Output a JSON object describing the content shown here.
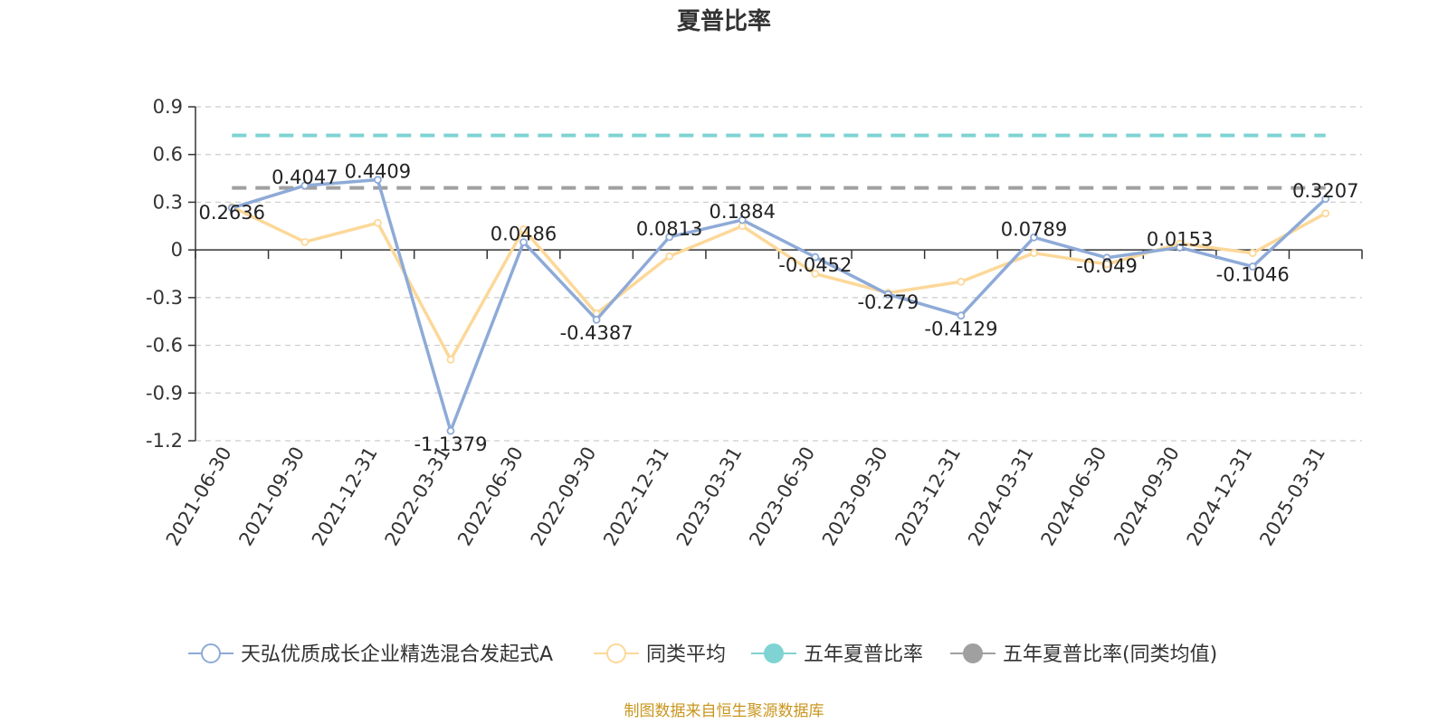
{
  "chart_data": {
    "type": "line",
    "title": "夏普比率",
    "categories": [
      "2021-06-30",
      "2021-09-30",
      "2021-12-31",
      "2022-03-31",
      "2022-06-30",
      "2022-09-30",
      "2022-12-31",
      "2023-03-31",
      "2023-06-30",
      "2023-09-30",
      "2023-12-31",
      "2024-03-31",
      "2024-06-30",
      "2024-09-30",
      "2024-12-31",
      "2025-03-31"
    ],
    "ylim": [
      -1.2,
      0.9
    ],
    "yticks": [
      "0.9",
      "0.6",
      "0.3",
      "0",
      "-0.3",
      "-0.6",
      "-0.9",
      "-1.2"
    ],
    "grid": true,
    "legend_position": "bottom",
    "series": [
      {
        "name": "天弘优质成长企业精选混合发起式A",
        "color": "#8eaad7",
        "values": [
          0.2636,
          0.4047,
          0.4409,
          -1.1379,
          0.0486,
          -0.4387,
          0.0813,
          0.1884,
          -0.0452,
          -0.279,
          -0.4129,
          0.0789,
          -0.049,
          0.0153,
          -0.1046,
          0.3207
        ],
        "labels": [
          "0.2636",
          "0.4047",
          "0.4409",
          "-1.1379",
          "0.0486",
          "-0.4387",
          "0.0813",
          "0.1884",
          "-0.0452",
          "-0.279",
          "-0.4129",
          "0.0789",
          "-0.049",
          "0.0153",
          "-0.1046",
          "0.3207"
        ]
      },
      {
        "name": "同类平均",
        "color": "#fcd899",
        "values": [
          0.27,
          0.05,
          0.17,
          -0.69,
          0.13,
          -0.4,
          -0.04,
          0.15,
          -0.15,
          -0.27,
          -0.2,
          -0.02,
          -0.09,
          0.04,
          -0.02,
          0.23
        ]
      }
    ],
    "reference_lines": [
      {
        "name": "五年夏普比率",
        "color": "#7fd3d3",
        "value": 0.72
      },
      {
        "name": "五年夏普比率(同类均值)",
        "color": "#a0a0a0",
        "value": 0.39
      }
    ],
    "source": "制图数据来自恒生聚源数据库"
  }
}
